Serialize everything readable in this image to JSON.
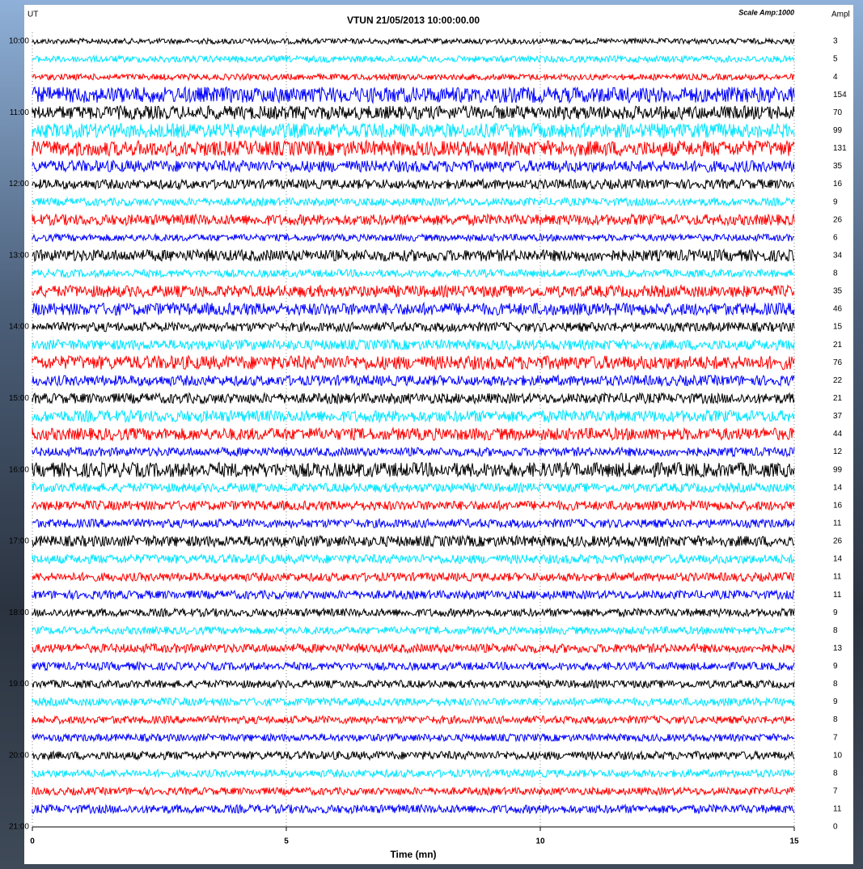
{
  "chart_data": {
    "type": "helicorder",
    "title": "VTUN 21/05/2013  10:00:00.00",
    "time_label": "UT",
    "scale_label": "Scale Amp:1000",
    "ampl_header": "Ampl",
    "xlabel": "Time (mn)",
    "xlim": [
      0,
      15
    ],
    "xticks": [
      0,
      5,
      10,
      15
    ],
    "grid": true,
    "colors": [
      "#000000",
      "#00e5ff",
      "#ff0000",
      "#0000ff"
    ],
    "categories": [
      "10:00",
      null,
      null,
      null,
      "11:00",
      null,
      null,
      null,
      "12:00",
      null,
      null,
      null,
      "13:00",
      null,
      null,
      null,
      "14:00",
      null,
      null,
      null,
      "15:00",
      null,
      null,
      null,
      "16:00",
      null,
      null,
      null,
      "17:00",
      null,
      null,
      null,
      "18:00",
      null,
      null,
      null,
      "19:00",
      null,
      null,
      null,
      "20:00",
      null,
      null,
      null,
      "21:00"
    ],
    "values": [
      3,
      5,
      4,
      154,
      70,
      99,
      131,
      35,
      16,
      9,
      26,
      6,
      34,
      8,
      35,
      46,
      15,
      21,
      76,
      22,
      21,
      37,
      44,
      12,
      99,
      14,
      16,
      11,
      26,
      14,
      11,
      11,
      9,
      8,
      13,
      9,
      8,
      9,
      8,
      7,
      10,
      8,
      7,
      11,
      0
    ]
  }
}
